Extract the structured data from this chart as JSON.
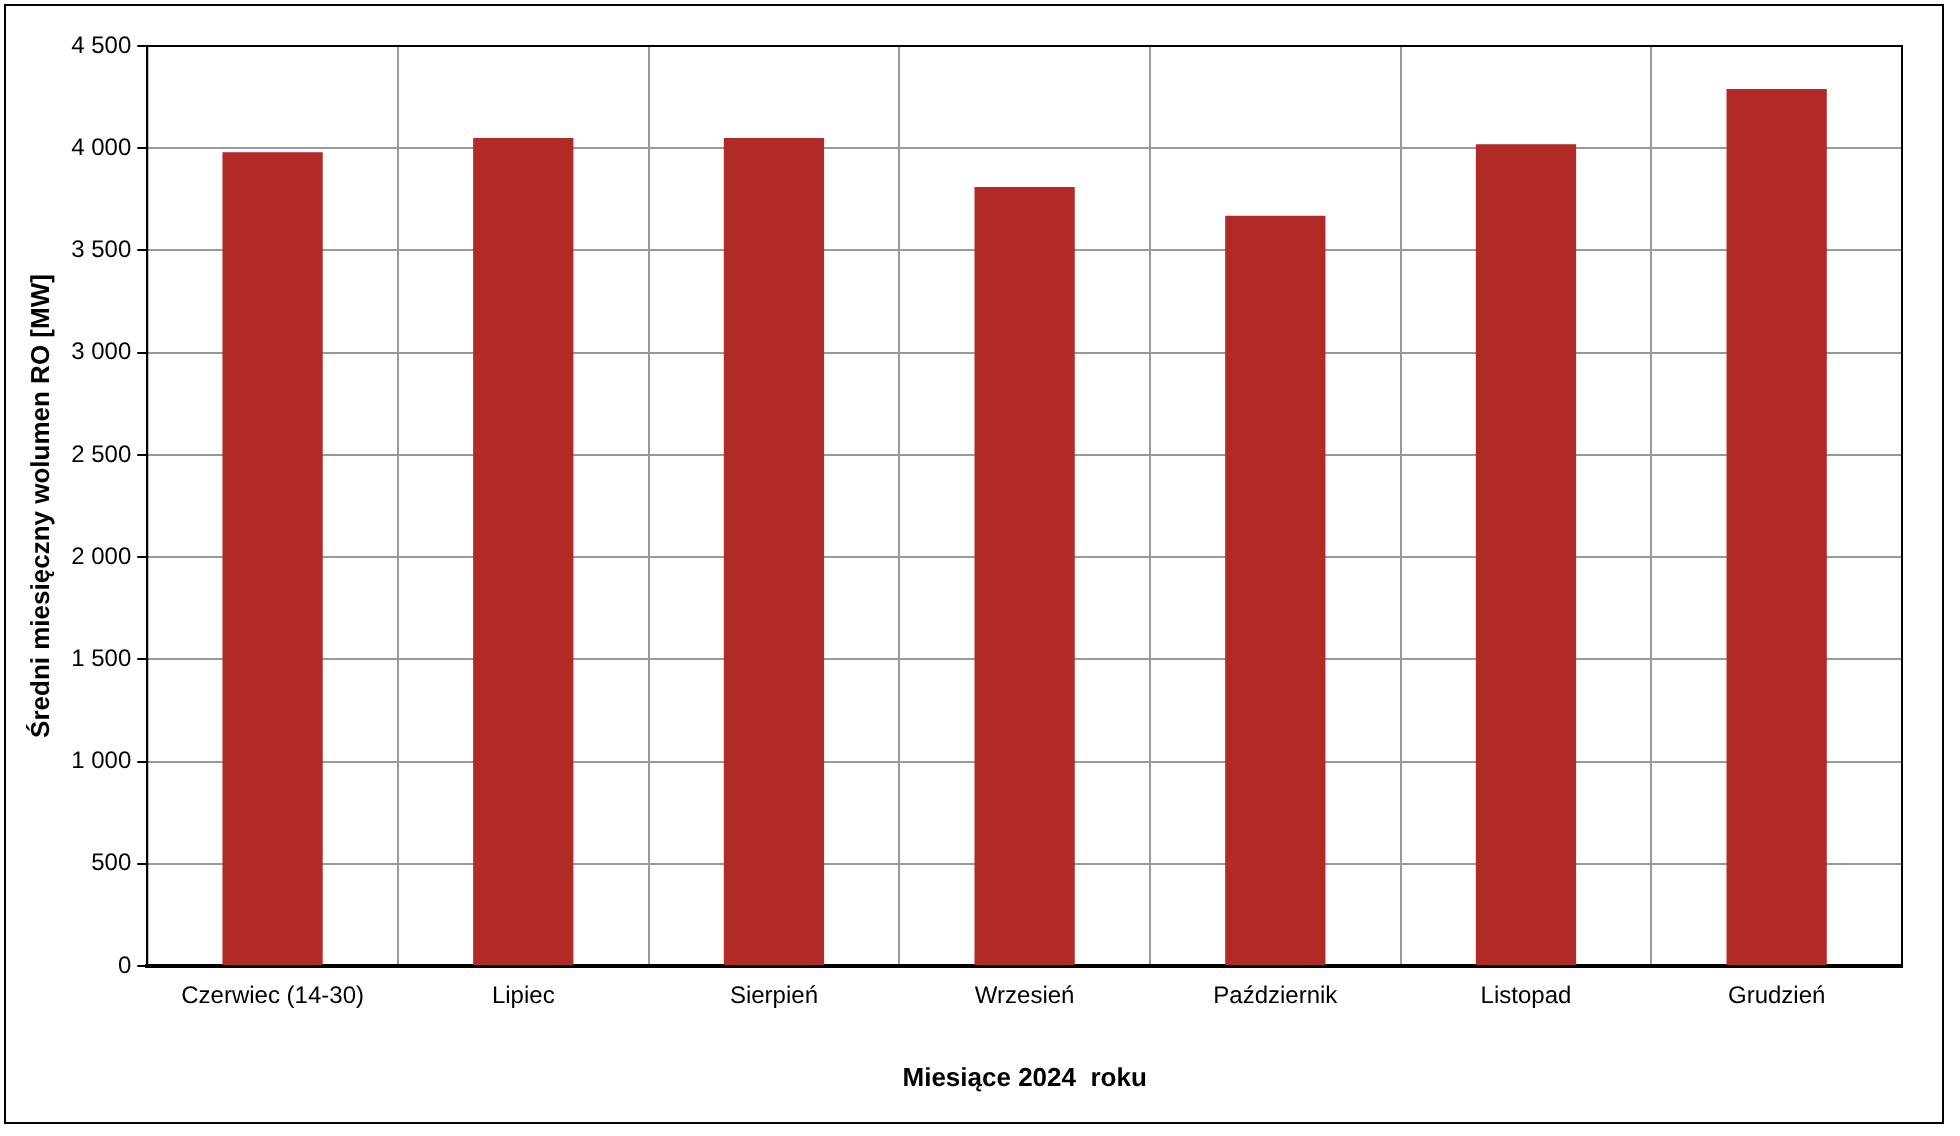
{
  "chart_data": {
    "type": "bar",
    "xlabel": "Miesiące 2024  roku",
    "ylabel": "Średni miesięczny wolumen RO [MW]",
    "categories": [
      "Czerwiec (14-30)",
      "Lipiec",
      "Sierpień",
      "Wrzesień",
      "Październik",
      "Listopad",
      "Grudzień"
    ],
    "values": [
      3980,
      4050,
      4050,
      3810,
      3670,
      4020,
      4290
    ],
    "color": "#b22a27",
    "ylim": [
      0,
      4500
    ],
    "yticks": [
      0,
      {
        "value": 500,
        "label": "500"
      },
      {
        "value": 1000,
        "label": "1 000"
      },
      {
        "value": 1500,
        "label": "1 500"
      },
      {
        "value": 2000,
        "label": "2 000"
      },
      {
        "value": 2500,
        "label": "2 500"
      },
      {
        "value": 3000,
        "label": "3 000"
      },
      {
        "value": 3500,
        "label": "3 500"
      },
      {
        "value": 4000,
        "label": "4 000"
      },
      {
        "value": 4500,
        "label": "4 500"
      }
    ],
    "grid": true,
    "legend": false
  }
}
